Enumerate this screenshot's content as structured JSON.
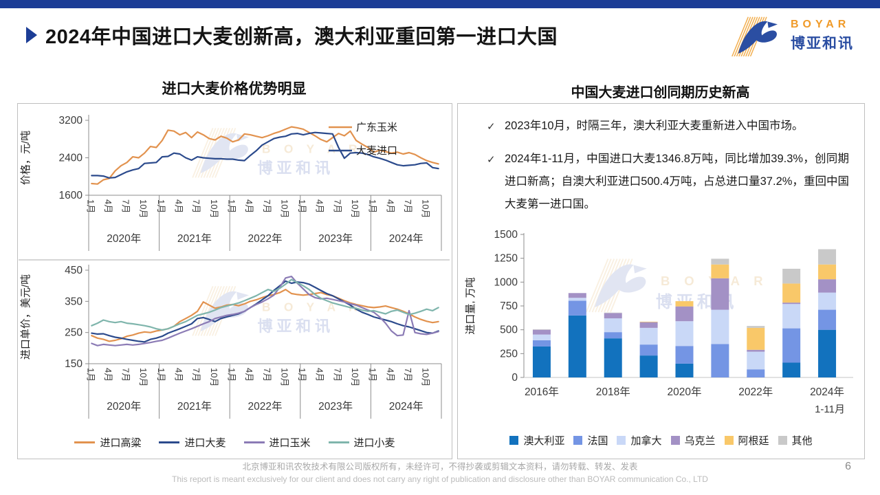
{
  "page": {
    "title": "2024年中国进口大麦创新高，澳大利亚重回第一进口大国",
    "page_number": "6",
    "footer_cn": "北京博亚和讯农牧技术有限公司版权所有，未经许可，不得抄袭或剪辑文本资料，请勿转载、转发、发表",
    "footer_en": "This report is meant exclusively for our client and does not carry any right of publication and disclosure other than BOYAR communication Co., LTD",
    "accent_color": "#1C3D96"
  },
  "logo": {
    "text_en": "BOYAR",
    "text_cn": "博亚和讯"
  },
  "panels": {
    "left_title": "进口大麦价格优势明显",
    "right_title": "中国大麦进口创同期历史新高"
  },
  "bullet_marker": "✓",
  "bullets": [
    "2023年10月，时隔三年，澳大利亚大麦重新进入中国市场。",
    "2024年1-11月，中国进口大麦1346.8万吨，同比增加39.3%，创同期进口新高；自澳大利亚进口500.4万吨，占总进口量37.2%，重回中国大麦第一进口国。"
  ],
  "chart_data": [
    {
      "type": "line",
      "title": "进口大麦价格优势明显",
      "ylabel": "价格，元/吨",
      "ylim": [
        1600,
        3200
      ],
      "yticks": [
        1600,
        2400,
        3200
      ],
      "x_unit": "month",
      "month_tick_labels": [
        "1月",
        "4月",
        "7月",
        "10月"
      ],
      "years": [
        "2020年",
        "2021年",
        "2022年",
        "2023年",
        "2024年"
      ],
      "legend_position": "top-right-inside",
      "grid": false,
      "series": [
        {
          "name": "广东玉米",
          "color": "#E2924E",
          "values": [
            1850,
            1840,
            1930,
            1960,
            2120,
            2230,
            2300,
            2420,
            2400,
            2500,
            2640,
            2620,
            2770,
            2990,
            2970,
            2890,
            2940,
            2830,
            2950,
            2890,
            2810,
            2780,
            2860,
            2820,
            2740,
            2780,
            2910,
            2890,
            2860,
            2830,
            2870,
            2920,
            2960,
            3010,
            3060,
            3040,
            3010,
            2940,
            2870,
            2790,
            2740,
            2830,
            2920,
            2870,
            2970,
            2770,
            2690,
            2620,
            2520,
            2560,
            2530,
            2500,
            2520,
            2480,
            2510,
            2470,
            2400,
            2340,
            2300,
            2270
          ]
        },
        {
          "name": "大麦进口",
          "color": "#2B4A8C",
          "values": [
            2020,
            2020,
            2010,
            1970,
            1980,
            2040,
            2100,
            2140,
            2170,
            2280,
            2290,
            2300,
            2420,
            2430,
            2500,
            2480,
            2400,
            2350,
            2420,
            2400,
            2390,
            2380,
            2380,
            2370,
            2370,
            2350,
            2340,
            2450,
            2550,
            2670,
            2740,
            2810,
            2840,
            2860,
            2910,
            2920,
            2890,
            2920,
            2940,
            2930,
            2920,
            2910,
            2620,
            2390,
            2500,
            2510,
            2500,
            2470,
            2420,
            2390,
            2350,
            2300,
            2250,
            2230,
            2240,
            2250,
            2280,
            2290,
            2190,
            2170
          ]
        }
      ]
    },
    {
      "type": "line",
      "title": "",
      "ylabel": "进口单价，美元/吨",
      "ylim": [
        150,
        450
      ],
      "yticks": [
        150,
        250,
        350,
        450
      ],
      "x_unit": "month",
      "month_tick_labels": [
        "1月",
        "4月",
        "7月",
        "10月"
      ],
      "years": [
        "2020年",
        "2021年",
        "2022年",
        "2023年",
        "2024年"
      ],
      "legend_position": "bottom",
      "grid": false,
      "series": [
        {
          "name": "进口高粱",
          "color": "#E2924E",
          "values": [
            240,
            232,
            228,
            222,
            225,
            230,
            238,
            242,
            248,
            252,
            250,
            255,
            258,
            262,
            270,
            285,
            295,
            305,
            318,
            348,
            338,
            328,
            332,
            338,
            340,
            336,
            342,
            350,
            355,
            362,
            368,
            372,
            378,
            388,
            375,
            372,
            370,
            372,
            375,
            378,
            372,
            368,
            360,
            352,
            345,
            340,
            336,
            332,
            330,
            332,
            335,
            330,
            325,
            318,
            310,
            300,
            292,
            286,
            282,
            285
          ]
        },
        {
          "name": "进口大麦",
          "color": "#2B4A8C",
          "values": [
            248,
            245,
            246,
            240,
            235,
            232,
            228,
            225,
            222,
            220,
            228,
            232,
            238,
            248,
            255,
            262,
            270,
            278,
            295,
            298,
            292,
            285,
            295,
            300,
            305,
            310,
            318,
            330,
            342,
            355,
            368,
            385,
            400,
            415,
            408,
            412,
            410,
            405,
            395,
            385,
            375,
            368,
            358,
            348,
            338,
            325,
            315,
            308,
            300,
            295,
            290,
            285,
            278,
            272,
            268,
            262,
            256,
            250,
            248,
            255
          ]
        },
        {
          "name": "进口玉米",
          "color": "#8B7BB5",
          "values": [
            215,
            208,
            212,
            210,
            208,
            210,
            212,
            210,
            212,
            215,
            218,
            222,
            225,
            232,
            240,
            248,
            255,
            262,
            270,
            278,
            285,
            295,
            300,
            305,
            308,
            312,
            318,
            330,
            340,
            348,
            358,
            370,
            395,
            425,
            430,
            408,
            390,
            372,
            362,
            358,
            360,
            356,
            352,
            348,
            342,
            338,
            330,
            322,
            315,
            300,
            280,
            255,
            240,
            242,
            320,
            250,
            246,
            244,
            248,
            253
          ]
        },
        {
          "name": "进口小麦",
          "color": "#7FB5AC",
          "values": [
            272,
            280,
            290,
            285,
            282,
            285,
            280,
            278,
            275,
            272,
            268,
            262,
            258,
            262,
            270,
            278,
            285,
            295,
            305,
            310,
            315,
            322,
            330,
            335,
            340,
            345,
            352,
            360,
            368,
            378,
            388,
            382,
            392,
            405,
            420,
            410,
            400,
            388,
            372,
            360,
            352,
            345,
            340,
            335,
            330,
            328,
            322,
            318,
            320,
            315,
            310,
            318,
            322,
            315,
            308,
            312,
            318,
            325,
            320,
            330
          ]
        }
      ]
    },
    {
      "type": "bar",
      "stacked": true,
      "title": "中国大麦进口创同期历史新高",
      "ylabel": "进口量, 万吨",
      "ylim": [
        0,
        1500
      ],
      "ytick_step": 250,
      "categories": [
        "2016年",
        "2017年",
        "2018年",
        "2019年",
        "2020年",
        "2021年",
        "2022年",
        "2023年",
        "2024年"
      ],
      "visible_category_labels": [
        "2016年",
        "2018年",
        "2020年",
        "2022年",
        "2024年"
      ],
      "last_category_sublabel": "1-11月",
      "legend_position": "bottom",
      "series": [
        {
          "name": "澳大利亚",
          "color": "#1272BE",
          "values": [
            325,
            650,
            410,
            230,
            145,
            0,
            0,
            155,
            500
          ]
        },
        {
          "name": "法国",
          "color": "#7495E4",
          "values": [
            65,
            155,
            65,
            115,
            185,
            350,
            85,
            360,
            210
          ]
        },
        {
          "name": "加拿大",
          "color": "#C9D8F7",
          "values": [
            60,
            30,
            145,
            175,
            260,
            360,
            185,
            255,
            180
          ]
        },
        {
          "name": "乌克兰",
          "color": "#A391C5",
          "values": [
            50,
            50,
            55,
            60,
            155,
            330,
            20,
            15,
            140
          ]
        },
        {
          "name": "阿根廷",
          "color": "#F9C869",
          "values": [
            0,
            0,
            0,
            5,
            55,
            145,
            230,
            200,
            155
          ]
        },
        {
          "name": "其他",
          "color": "#C9C9C9",
          "values": [
            5,
            0,
            5,
            0,
            0,
            60,
            20,
            155,
            160
          ]
        }
      ]
    }
  ]
}
